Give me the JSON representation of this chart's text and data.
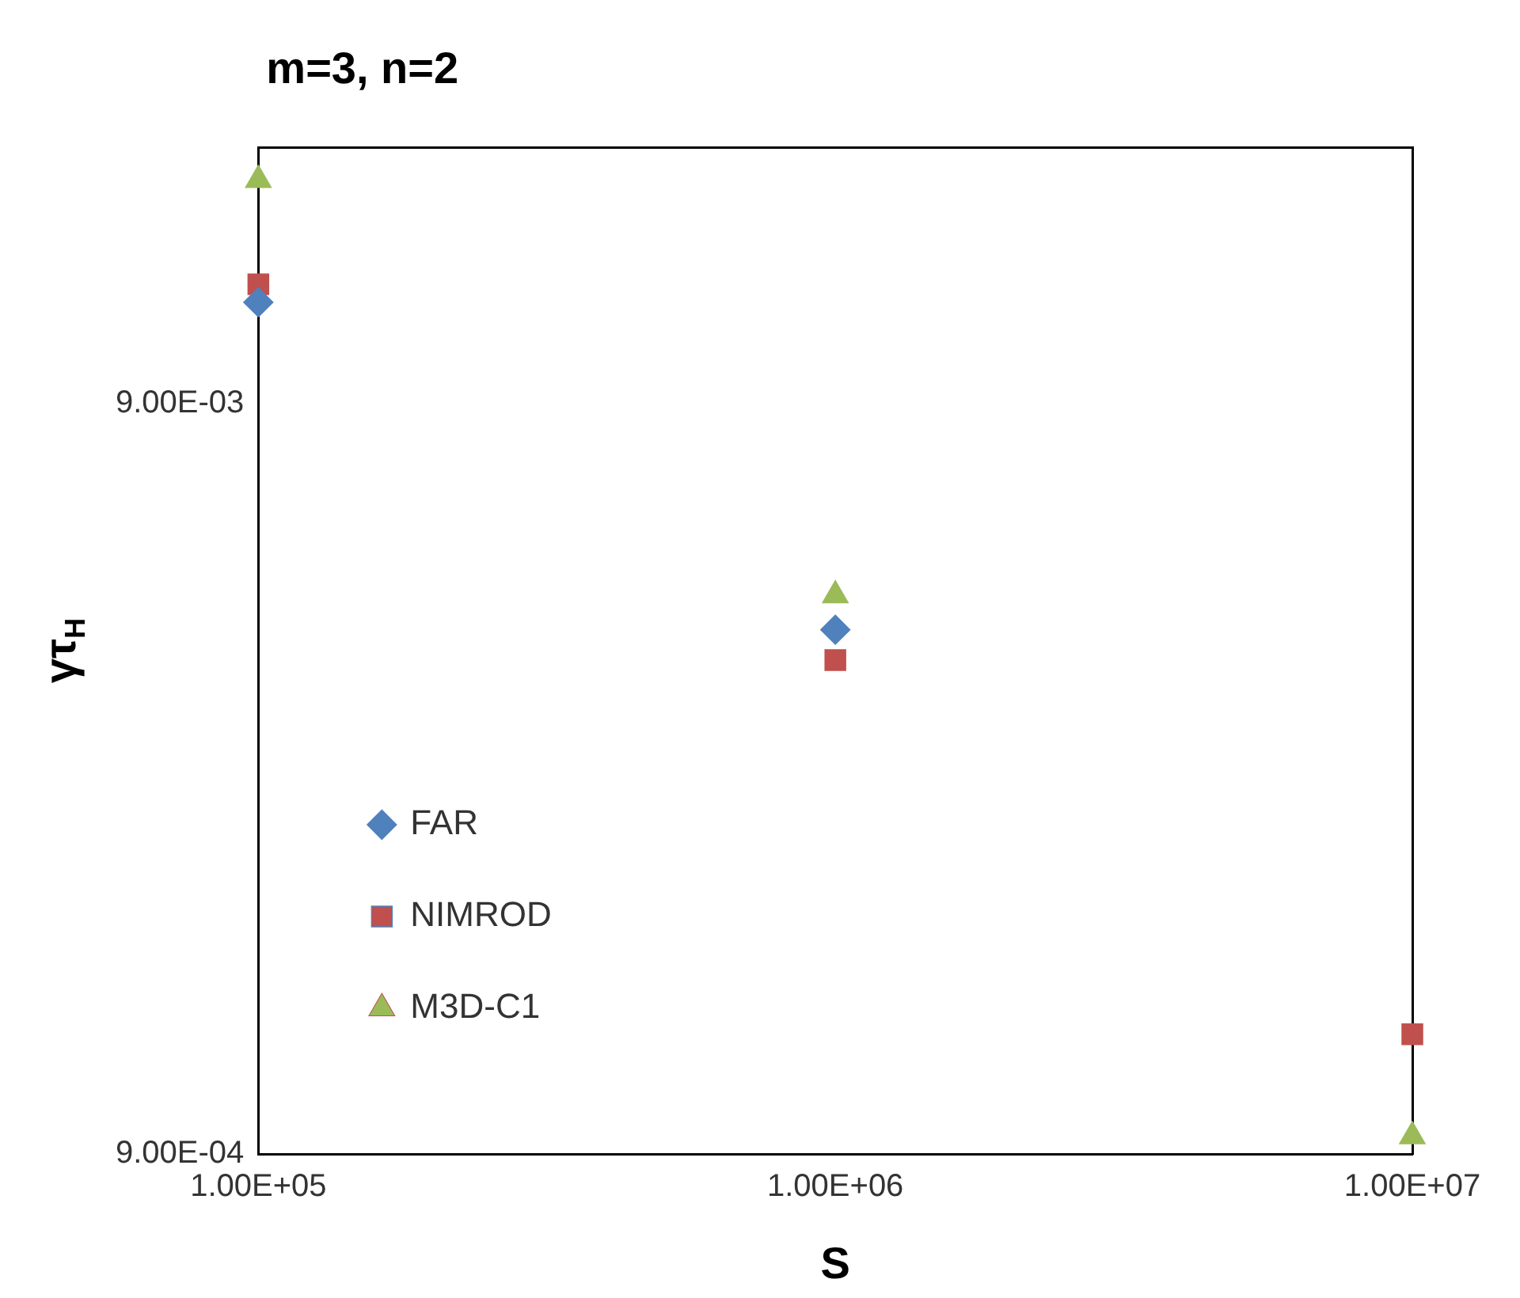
{
  "chart_data": {
    "type": "scatter",
    "title": "m=3, n=2",
    "xlabel": "S",
    "ylabel": "γτ$_{H}$",
    "log": "xy",
    "grid": false,
    "legend": "left",
    "xlim": [
      100000,
      10000000
    ],
    "xticks": [
      {
        "value": 100000,
        "label": "1.00E+05"
      },
      {
        "value": 1000000,
        "label": "1.00E+06"
      },
      {
        "value": 10000000,
        "label": "1.00E+07"
      }
    ],
    "ylim": [
      0.0009,
      0.0198
    ],
    "yticks": [
      {
        "value": 0.0009,
        "label": "9.00E-04"
      },
      {
        "value": 0.009,
        "label": "9.00E-03"
      }
    ],
    "series": [
      {
        "name": "FAR",
        "color": "#4f81bd",
        "marker": "diamond",
        "x": [
          100000,
          1000000
        ],
        "values": [
          0.0123,
          0.0045
        ]
      },
      {
        "name": "NIMROD",
        "color": "#c0504d",
        "marker": "square",
        "x": [
          100000,
          1000000,
          10000000
        ],
        "values": [
          0.013,
          0.0041,
          0.0013
        ]
      },
      {
        "name": "M3D-C1",
        "color": "#9bbb59",
        "marker": "triangle",
        "x": [
          100000,
          1000000,
          10000000
        ],
        "values": [
          0.0179,
          0.005,
          0.00095
        ]
      }
    ]
  }
}
